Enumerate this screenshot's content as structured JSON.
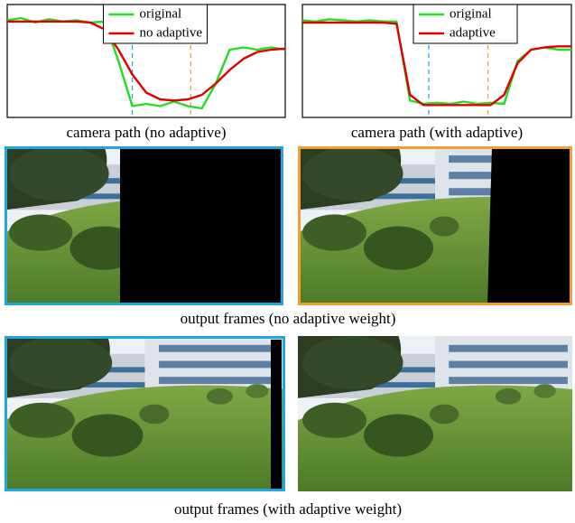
{
  "chart_data": [
    {
      "type": "line",
      "title": "camera path (no adaptive)",
      "x": [
        0,
        5,
        10,
        15,
        20,
        25,
        30,
        35,
        40,
        45,
        50,
        55,
        60,
        65,
        70,
        75,
        80,
        85,
        90,
        95,
        100
      ],
      "xlim": [
        0,
        100
      ],
      "ylim": [
        0,
        1
      ],
      "legend": "upper center",
      "series": [
        {
          "name": "original",
          "color": "#22dd22",
          "values": [
            0.86,
            0.88,
            0.84,
            0.87,
            0.85,
            0.86,
            0.84,
            0.85,
            0.5,
            0.1,
            0.12,
            0.1,
            0.14,
            0.1,
            0.08,
            0.3,
            0.6,
            0.62,
            0.6,
            0.62,
            0.6
          ]
        },
        {
          "name": "no adaptive",
          "color": "#e00000",
          "values": [
            0.85,
            0.85,
            0.85,
            0.85,
            0.85,
            0.85,
            0.84,
            0.78,
            0.6,
            0.38,
            0.22,
            0.16,
            0.15,
            0.16,
            0.2,
            0.3,
            0.42,
            0.52,
            0.58,
            0.6,
            0.61
          ]
        }
      ],
      "reference_lines": [
        {
          "x": 45,
          "color": "#2aa8e0"
        },
        {
          "x": 66,
          "color": "#f0a040"
        }
      ]
    },
    {
      "type": "line",
      "title": "camera path (with adaptive)",
      "x": [
        0,
        5,
        10,
        15,
        20,
        25,
        30,
        35,
        40,
        45,
        50,
        55,
        60,
        65,
        70,
        75,
        80,
        85,
        90,
        95,
        100
      ],
      "xlim": [
        0,
        100
      ],
      "ylim": [
        0,
        1
      ],
      "legend": "upper right",
      "series": [
        {
          "name": "original",
          "color": "#22dd22",
          "values": [
            0.86,
            0.85,
            0.87,
            0.86,
            0.85,
            0.86,
            0.85,
            0.85,
            0.15,
            0.12,
            0.13,
            0.12,
            0.14,
            0.12,
            0.13,
            0.12,
            0.5,
            0.6,
            0.62,
            0.6,
            0.6
          ]
        },
        {
          "name": "adaptive",
          "color": "#e00000",
          "values": [
            0.84,
            0.84,
            0.84,
            0.84,
            0.84,
            0.84,
            0.84,
            0.83,
            0.2,
            0.11,
            0.11,
            0.11,
            0.11,
            0.11,
            0.11,
            0.2,
            0.48,
            0.6,
            0.62,
            0.63,
            0.63
          ]
        }
      ],
      "reference_lines": [
        {
          "x": 47,
          "color": "#2aa8e0"
        },
        {
          "x": 69,
          "color": "#f0a040"
        }
      ]
    }
  ],
  "captions": [
    "output frames (no adaptive weight)",
    "output frames (with adaptive weight)"
  ]
}
